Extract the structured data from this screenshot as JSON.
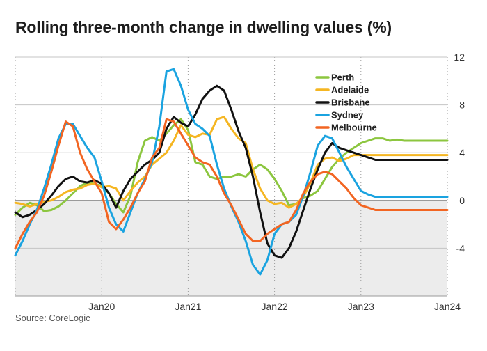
{
  "title": "Rolling three-month change in dwelling values (%)",
  "source": "Source: CoreLogic",
  "chart_data": {
    "type": "line",
    "title": "Rolling three-month change in dwelling values (%)",
    "xlabel": "",
    "ylabel": "",
    "x_tick_labels": [
      "Jan20",
      "Jan21",
      "Jan22",
      "Jan23",
      "Jan24"
    ],
    "y_ticks": [
      12,
      8,
      4,
      0,
      -4
    ],
    "ylim": [
      -8,
      12
    ],
    "x_range": [
      "2019-01",
      "2024-01"
    ],
    "grid": "dotted vertical at January of each year, solid horizontal at y ticks",
    "negative_region_shaded": true,
    "legend_position": "top-right",
    "x": [
      "2019-01",
      "2019-02",
      "2019-03",
      "2019-04",
      "2019-05",
      "2019-06",
      "2019-07",
      "2019-08",
      "2019-09",
      "2019-10",
      "2019-11",
      "2019-12",
      "2020-01",
      "2020-02",
      "2020-03",
      "2020-04",
      "2020-05",
      "2020-06",
      "2020-07",
      "2020-08",
      "2020-09",
      "2020-10",
      "2020-11",
      "2020-12",
      "2021-01",
      "2021-02",
      "2021-03",
      "2021-04",
      "2021-05",
      "2021-06",
      "2021-07",
      "2021-08",
      "2021-09",
      "2021-10",
      "2021-11",
      "2021-12",
      "2022-01",
      "2022-02",
      "2022-03",
      "2022-04",
      "2022-05",
      "2022-06",
      "2022-07",
      "2022-08",
      "2022-09",
      "2022-10",
      "2022-11",
      "2022-12",
      "2023-01",
      "2023-02",
      "2023-03",
      "2023-04",
      "2023-05",
      "2023-06",
      "2023-07",
      "2023-08",
      "2023-09",
      "2023-10",
      "2023-11",
      "2023-12",
      "2024-01"
    ],
    "series": [
      {
        "name": "Perth",
        "color": "#8cc63f",
        "values": [
          -1.2,
          -0.6,
          -0.2,
          -0.4,
          -0.9,
          -0.8,
          -0.5,
          0.0,
          0.6,
          1.2,
          1.5,
          1.4,
          1.2,
          0.6,
          -0.3,
          -1.0,
          0.4,
          3.2,
          5.0,
          5.3,
          5.0,
          5.6,
          6.3,
          6.8,
          5.9,
          3.2,
          3.0,
          2.0,
          1.8,
          2.0,
          2.0,
          2.2,
          2.0,
          2.6,
          3.0,
          2.6,
          1.8,
          0.8,
          -0.4,
          -0.3,
          0.2,
          0.4,
          0.8,
          1.8,
          2.8,
          3.5,
          4.0,
          4.4,
          4.8,
          5.0,
          5.2,
          5.2,
          5.0,
          5.1,
          5.0,
          5.0,
          5.0,
          5.0,
          5.0,
          5.0,
          5.0
        ]
      },
      {
        "name": "Adelaide",
        "color": "#f5b622",
        "values": [
          -0.2,
          -0.3,
          -0.5,
          -0.3,
          -0.1,
          0.0,
          0.3,
          0.7,
          0.9,
          1.0,
          1.3,
          1.4,
          1.1,
          1.2,
          1.0,
          0.0,
          0.8,
          1.5,
          2.0,
          3.0,
          3.5,
          4.0,
          5.0,
          6.3,
          5.5,
          5.3,
          5.6,
          5.5,
          6.8,
          7.0,
          6.0,
          5.2,
          4.8,
          2.6,
          1.0,
          0.0,
          -0.3,
          -0.2,
          -0.6,
          -0.3,
          0.3,
          1.5,
          3.0,
          3.5,
          3.6,
          3.3,
          3.5,
          3.8,
          3.8,
          3.8,
          3.8,
          3.8,
          3.8,
          3.8,
          3.8,
          3.8,
          3.8,
          3.8,
          3.8,
          3.8,
          3.8
        ]
      },
      {
        "name": "Brisbane",
        "color": "#111111",
        "values": [
          -1.0,
          -1.4,
          -1.2,
          -0.8,
          -0.3,
          0.4,
          1.2,
          1.8,
          2.0,
          1.6,
          1.5,
          1.7,
          1.4,
          0.6,
          -0.6,
          0.8,
          1.8,
          2.4,
          3.0,
          3.4,
          4.0,
          6.0,
          7.0,
          6.5,
          6.2,
          7.2,
          8.5,
          9.2,
          9.6,
          9.2,
          7.6,
          5.8,
          4.4,
          2.0,
          -1.0,
          -3.6,
          -4.6,
          -4.8,
          -4.0,
          -2.6,
          -0.8,
          1.0,
          2.6,
          4.0,
          4.8,
          4.4,
          4.2,
          4.0,
          3.8,
          3.6,
          3.4,
          3.4,
          3.4,
          3.4,
          3.4,
          3.4,
          3.4,
          3.4,
          3.4,
          3.4,
          3.4
        ]
      },
      {
        "name": "Sydney",
        "color": "#1aa3e0",
        "values": [
          -4.6,
          -3.4,
          -2.0,
          -0.8,
          1.0,
          3.0,
          5.2,
          6.4,
          6.4,
          5.4,
          4.4,
          3.6,
          1.6,
          -0.6,
          -2.0,
          -2.6,
          -1.0,
          0.6,
          1.8,
          3.2,
          6.2,
          10.8,
          11.0,
          9.6,
          7.6,
          6.4,
          6.0,
          5.4,
          3.0,
          1.0,
          -0.5,
          -1.8,
          -3.4,
          -5.4,
          -6.2,
          -5.0,
          -2.8,
          -2.0,
          -1.8,
          -1.2,
          0.4,
          2.4,
          4.6,
          5.4,
          5.2,
          4.0,
          2.8,
          1.8,
          0.8,
          0.5,
          0.3,
          0.3,
          0.3,
          0.3,
          0.3,
          0.3,
          0.3,
          0.3,
          0.3,
          0.3,
          0.3
        ]
      },
      {
        "name": "Melbourne",
        "color": "#f26522",
        "values": [
          -4.0,
          -2.8,
          -1.8,
          -1.0,
          0.4,
          2.4,
          4.6,
          6.6,
          6.2,
          4.0,
          2.6,
          1.6,
          0.6,
          -1.8,
          -2.4,
          -1.6,
          -0.6,
          0.6,
          1.6,
          3.6,
          4.4,
          6.8,
          6.6,
          5.6,
          4.6,
          3.6,
          3.2,
          3.0,
          2.0,
          0.6,
          -0.4,
          -1.6,
          -2.8,
          -3.4,
          -3.4,
          -2.8,
          -2.4,
          -2.0,
          -1.8,
          -0.8,
          0.6,
          1.6,
          2.2,
          2.4,
          2.2,
          1.6,
          1.0,
          0.2,
          -0.4,
          -0.6,
          -0.8,
          -0.8,
          -0.8,
          -0.8,
          -0.8,
          -0.8,
          -0.8,
          -0.8,
          -0.8,
          -0.8,
          -0.8
        ]
      }
    ]
  }
}
